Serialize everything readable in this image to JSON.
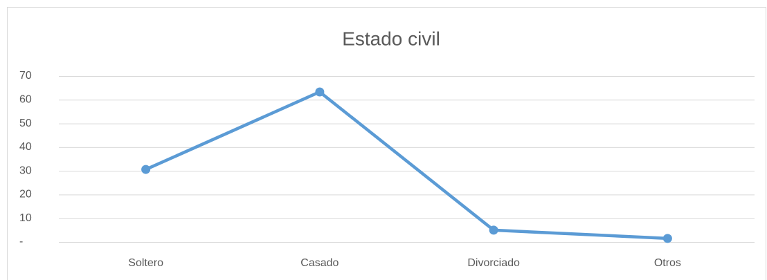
{
  "chart_data": {
    "type": "line",
    "title": "Estado civil",
    "categories": [
      "Soltero",
      "Casado",
      "Divorciado",
      "Otros"
    ],
    "values": [
      30.6,
      63.3,
      5.0,
      1.5
    ],
    "color": "#5b9bd5",
    "ylim": [
      0,
      70
    ],
    "yticks": [
      {
        "value": 0,
        "label": "-"
      },
      10,
      20,
      30,
      40,
      50,
      60,
      70
    ],
    "grid": true
  }
}
